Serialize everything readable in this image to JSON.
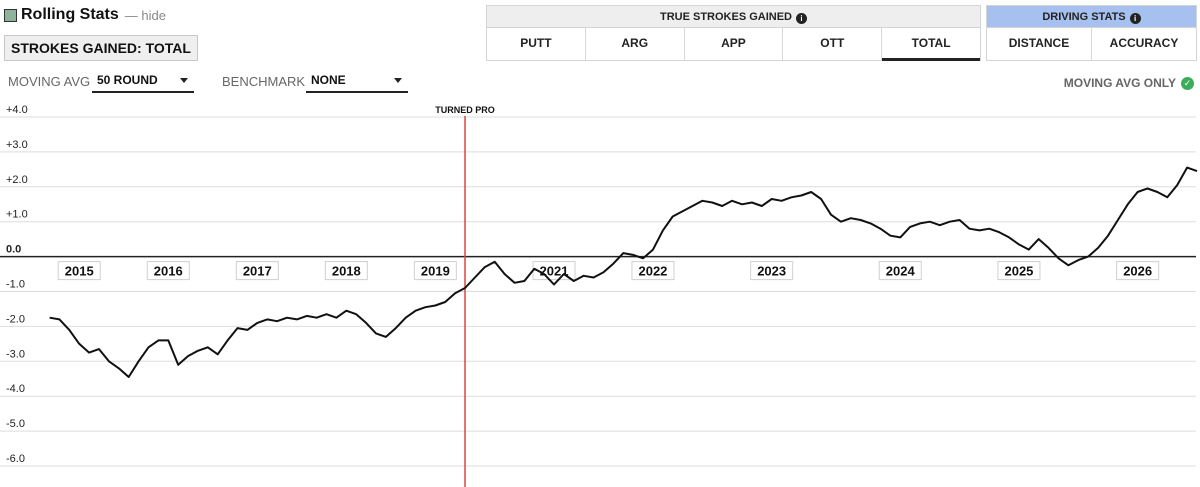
{
  "header": {
    "title": "Rolling Stats",
    "hide_label": "— hide",
    "badge": "STROKES GAINED: TOTAL"
  },
  "controls": {
    "moving_avg_label": "MOVING AVG",
    "moving_avg_value": "50 ROUND",
    "benchmark_label": "BENCHMARK",
    "benchmark_value": "NONE",
    "moving_avg_only": "MOVING AVG ONLY"
  },
  "tab_groups": {
    "true_sg": {
      "title": "TRUE STROKES GAINED",
      "tabs": [
        "PUTT",
        "ARG",
        "APP",
        "OTT",
        "TOTAL"
      ],
      "active": "TOTAL"
    },
    "driving": {
      "title": "DRIVING STATS",
      "tabs": [
        "DISTANCE",
        "ACCURACY"
      ]
    }
  },
  "colors": {
    "line": "#111111",
    "annotation": "#e0443a",
    "driving_header": "#a6c1f0",
    "zero_line": "#222222",
    "grid": "#dddddd"
  },
  "icons": [
    "info-icon",
    "check-icon",
    "chevron-down-icon"
  ],
  "chart_data": {
    "type": "line",
    "title": "",
    "xlabel": "",
    "ylabel": "",
    "ylim": [
      -6.5,
      4.3
    ],
    "yticks": [
      "+4.0",
      "+3.0",
      "+2.0",
      "+1.0",
      "0.0",
      "-1.0",
      "-2.0",
      "-3.0",
      "-4.0",
      "-5.0",
      "-6.0"
    ],
    "ytick_values": [
      4,
      3,
      2,
      1,
      0,
      -1,
      -2,
      -3,
      -4,
      -5,
      -6
    ],
    "xticks": [
      {
        "label": "2015",
        "at": 3
      },
      {
        "label": "2016",
        "at": 12
      },
      {
        "label": "2017",
        "at": 21
      },
      {
        "label": "2018",
        "at": 30
      },
      {
        "label": "2019",
        "at": 39
      },
      {
        "label": "2021",
        "at": 51
      },
      {
        "label": "2022",
        "at": 61
      },
      {
        "label": "2023",
        "at": 73
      },
      {
        "label": "2024",
        "at": 86
      },
      {
        "label": "2025",
        "at": 98
      },
      {
        "label": "2026",
        "at": 110
      }
    ],
    "x_range": [
      -4,
      116
    ],
    "annotation": {
      "label": "TURNED PRO",
      "at": 42
    },
    "grid": true,
    "series": [
      {
        "values": [
          [
            0,
            -1.75
          ],
          [
            1,
            -1.8
          ],
          [
            2,
            -2.1
          ],
          [
            3,
            -2.5
          ],
          [
            4,
            -2.75
          ],
          [
            5,
            -2.65
          ],
          [
            6,
            -3.0
          ],
          [
            7,
            -3.2
          ],
          [
            8,
            -3.45
          ],
          [
            9,
            -3.0
          ],
          [
            10,
            -2.6
          ],
          [
            11,
            -2.4
          ],
          [
            12,
            -2.4
          ],
          [
            13,
            -3.1
          ],
          [
            14,
            -2.85
          ],
          [
            15,
            -2.7
          ],
          [
            16,
            -2.6
          ],
          [
            17,
            -2.8
          ],
          [
            18,
            -2.4
          ],
          [
            19,
            -2.05
          ],
          [
            20,
            -2.1
          ],
          [
            21,
            -1.9
          ],
          [
            22,
            -1.8
          ],
          [
            23,
            -1.85
          ],
          [
            24,
            -1.75
          ],
          [
            25,
            -1.8
          ],
          [
            26,
            -1.7
          ],
          [
            27,
            -1.75
          ],
          [
            28,
            -1.65
          ],
          [
            29,
            -1.75
          ],
          [
            30,
            -1.55
          ],
          [
            31,
            -1.65
          ],
          [
            32,
            -1.9
          ],
          [
            33,
            -2.2
          ],
          [
            34,
            -2.3
          ],
          [
            35,
            -2.05
          ],
          [
            36,
            -1.75
          ],
          [
            37,
            -1.55
          ],
          [
            38,
            -1.45
          ],
          [
            39,
            -1.4
          ],
          [
            40,
            -1.3
          ],
          [
            41,
            -1.05
          ],
          [
            42,
            -0.9
          ],
          [
            43,
            -0.6
          ],
          [
            44,
            -0.3
          ],
          [
            45,
            -0.15
          ],
          [
            46,
            -0.5
          ],
          [
            47,
            -0.75
          ],
          [
            48,
            -0.7
          ],
          [
            49,
            -0.35
          ],
          [
            50,
            -0.5
          ],
          [
            51,
            -0.8
          ],
          [
            52,
            -0.5
          ],
          [
            53,
            -0.7
          ],
          [
            54,
            -0.55
          ],
          [
            55,
            -0.6
          ],
          [
            56,
            -0.45
          ],
          [
            57,
            -0.2
          ],
          [
            58,
            0.1
          ],
          [
            59,
            0.05
          ],
          [
            60,
            -0.05
          ],
          [
            61,
            0.2
          ],
          [
            62,
            0.75
          ],
          [
            63,
            1.15
          ],
          [
            64,
            1.3
          ],
          [
            65,
            1.45
          ],
          [
            66,
            1.6
          ],
          [
            67,
            1.55
          ],
          [
            68,
            1.45
          ],
          [
            69,
            1.6
          ],
          [
            70,
            1.5
          ],
          [
            71,
            1.55
          ],
          [
            72,
            1.45
          ],
          [
            73,
            1.65
          ],
          [
            74,
            1.6
          ],
          [
            75,
            1.7
          ],
          [
            76,
            1.75
          ],
          [
            77,
            1.85
          ],
          [
            78,
            1.65
          ],
          [
            79,
            1.2
          ],
          [
            80,
            1.0
          ],
          [
            81,
            1.1
          ],
          [
            82,
            1.05
          ],
          [
            83,
            0.95
          ],
          [
            84,
            0.8
          ],
          [
            85,
            0.6
          ],
          [
            86,
            0.55
          ],
          [
            87,
            0.85
          ],
          [
            88,
            0.95
          ],
          [
            89,
            1.0
          ],
          [
            90,
            0.9
          ],
          [
            91,
            1.0
          ],
          [
            92,
            1.05
          ],
          [
            93,
            0.8
          ],
          [
            94,
            0.75
          ],
          [
            95,
            0.8
          ],
          [
            96,
            0.7
          ],
          [
            97,
            0.55
          ],
          [
            98,
            0.35
          ],
          [
            99,
            0.2
          ],
          [
            100,
            0.5
          ],
          [
            101,
            0.25
          ],
          [
            102,
            -0.05
          ],
          [
            103,
            -0.25
          ],
          [
            104,
            -0.1
          ],
          [
            105,
            0.0
          ],
          [
            106,
            0.25
          ],
          [
            107,
            0.6
          ],
          [
            108,
            1.05
          ],
          [
            109,
            1.5
          ],
          [
            110,
            1.85
          ],
          [
            111,
            1.95
          ],
          [
            112,
            1.85
          ],
          [
            113,
            1.7
          ],
          [
            114,
            2.05
          ],
          [
            115,
            2.55
          ],
          [
            116,
            2.45
          ]
        ]
      }
    ]
  }
}
